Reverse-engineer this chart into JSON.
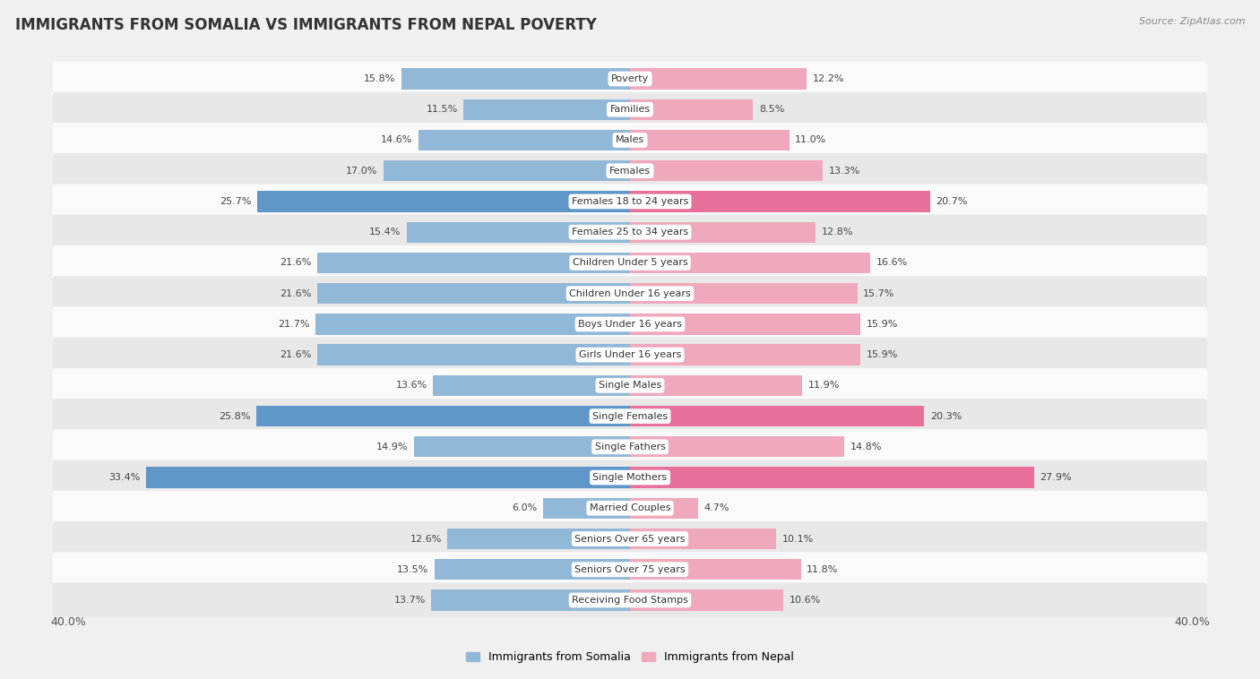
{
  "title": "IMMIGRANTS FROM SOMALIA VS IMMIGRANTS FROM NEPAL POVERTY",
  "source": "Source: ZipAtlas.com",
  "categories": [
    "Poverty",
    "Families",
    "Males",
    "Females",
    "Females 18 to 24 years",
    "Females 25 to 34 years",
    "Children Under 5 years",
    "Children Under 16 years",
    "Boys Under 16 years",
    "Girls Under 16 years",
    "Single Males",
    "Single Females",
    "Single Fathers",
    "Single Mothers",
    "Married Couples",
    "Seniors Over 65 years",
    "Seniors Over 75 years",
    "Receiving Food Stamps"
  ],
  "somalia_values": [
    15.8,
    11.5,
    14.6,
    17.0,
    25.7,
    15.4,
    21.6,
    21.6,
    21.7,
    21.6,
    13.6,
    25.8,
    14.9,
    33.4,
    6.0,
    12.6,
    13.5,
    13.7
  ],
  "nepal_values": [
    12.2,
    8.5,
    11.0,
    13.3,
    20.7,
    12.8,
    16.6,
    15.7,
    15.9,
    15.9,
    11.9,
    20.3,
    14.8,
    27.9,
    4.7,
    10.1,
    11.8,
    10.6
  ],
  "somalia_color": "#92b8d8",
  "nepal_color": "#f0a8bc",
  "somalia_highlight_color": "#6096c8",
  "nepal_highlight_color": "#e8709a",
  "highlight_rows": [
    4,
    11,
    13
  ],
  "max_value": 40.0,
  "bar_height": 0.68,
  "label_fontsize": 8.0,
  "category_fontsize": 8.0,
  "title_fontsize": 12,
  "bg_color": "#f0f0f0",
  "row_bg_light": "#fafafa",
  "row_bg_dark": "#e8e8e8",
  "legend_somalia": "Immigrants from Somalia",
  "legend_nepal": "Immigrants from Nepal"
}
